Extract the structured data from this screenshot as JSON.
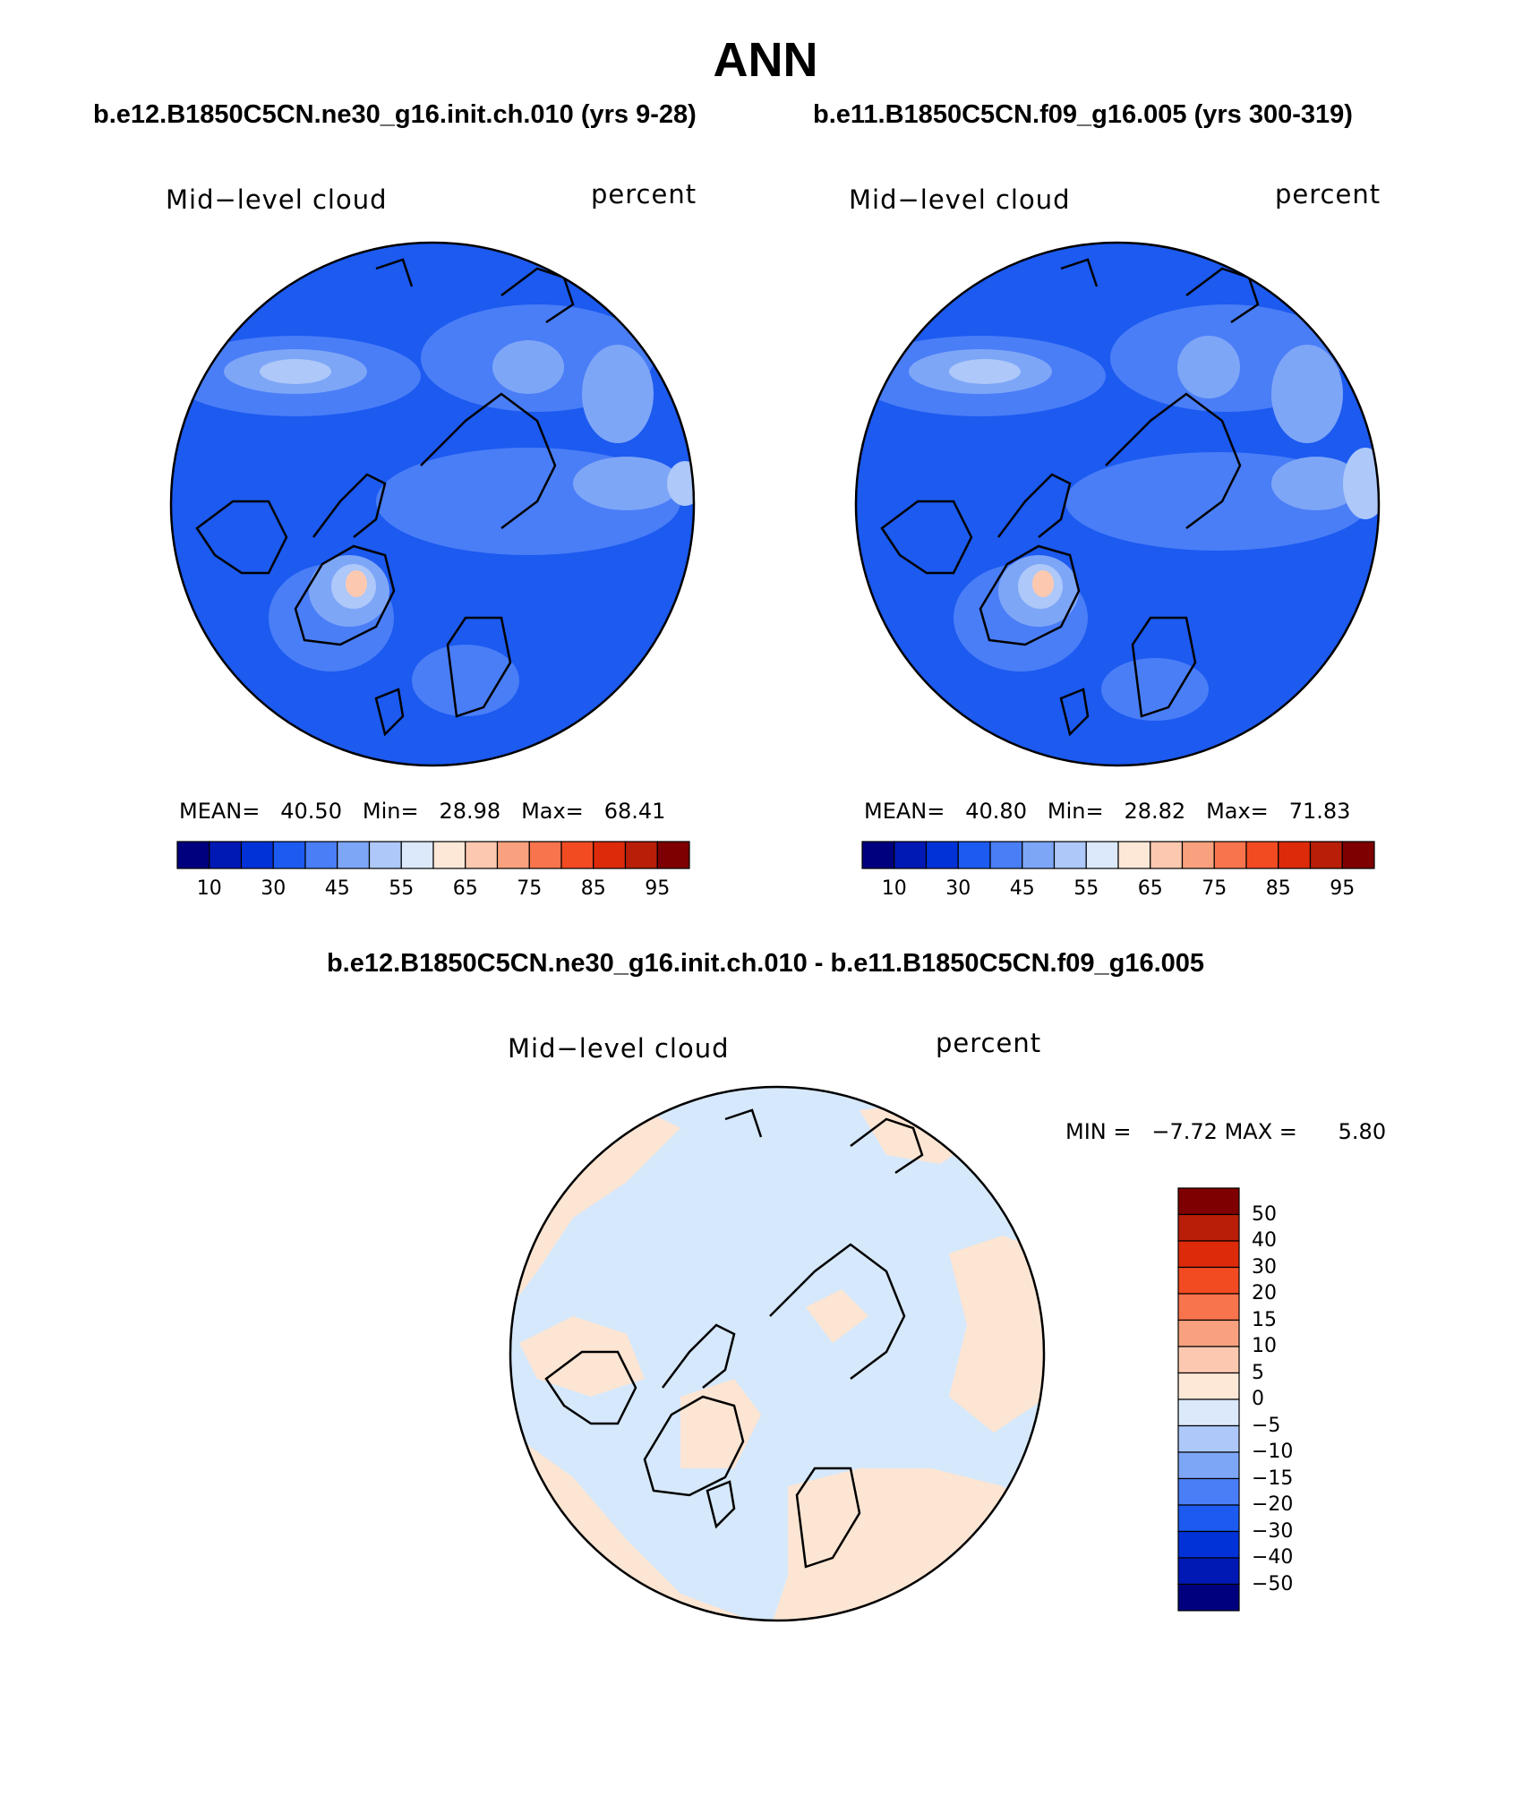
{
  "figure": {
    "season": "ANN",
    "top_left": {
      "title": "b.e12.B1850C5CN.ne30_g16.init.ch.010 (yrs 9-28)",
      "field": "Mid−level cloud",
      "units": "percent",
      "stats": {
        "mean_label": "MEAN=",
        "mean": "40.50",
        "min_label": "Min=",
        "min": "28.98",
        "max_label": "Max=",
        "max": "68.41"
      }
    },
    "top_right": {
      "title": "b.e11.B1850C5CN.f09_g16.005 (yrs 300-319)",
      "field": "Mid−level cloud",
      "units": "percent",
      "stats": {
        "mean_label": "MEAN=",
        "mean": "40.80",
        "min_label": "Min=",
        "min": "28.82",
        "max_label": "Max=",
        "max": "71.83"
      }
    },
    "difference": {
      "title": "b.e12.B1850C5CN.ne30_g16.init.ch.010 - b.e11.B1850C5CN.f09_g16.005",
      "field": "Mid−level cloud",
      "units": "percent",
      "stats": {
        "min_label": "MIN =",
        "min": "−7.72",
        "max_label": "MAX =",
        "max": "5.80"
      }
    },
    "abs_colorbar": {
      "colors": [
        "#00007f",
        "#0018b4",
        "#0032d8",
        "#1c5af0",
        "#4a7ef7",
        "#7ea6f7",
        "#adc8f9",
        "#dbe9fb",
        "#fde8d8",
        "#fcc9b0",
        "#f9a17e",
        "#f7744d",
        "#f24b22",
        "#dd2a0a",
        "#b81e08",
        "#7f0000"
      ],
      "tick_labels": [
        "10",
        "30",
        "45",
        "55",
        "65",
        "75",
        "85",
        "95"
      ]
    },
    "diff_colorbar": {
      "colors_top_to_bottom": [
        "#7f0000",
        "#b81e08",
        "#dd2a0a",
        "#f24b22",
        "#f7744d",
        "#f9a17e",
        "#fcc9b0",
        "#fde8d8",
        "#dbe9fb",
        "#adc8f9",
        "#7ea6f7",
        "#4a7ef7",
        "#1c5af0",
        "#0032d8",
        "#0018b4",
        "#00007f"
      ],
      "tick_labels": [
        "50",
        "40",
        "30",
        "20",
        "15",
        "10",
        "5",
        "0",
        "−5",
        "−10",
        "−15",
        "−20",
        "−30",
        "−40",
        "−50"
      ]
    },
    "colors": {
      "base_blue": "#1c5af0",
      "mid_blue": "#4a7ef7",
      "light_blue": "#7ea6f7",
      "pale_blue": "#adc8f9",
      "very_pale_blue": "#dbe9fb",
      "peach": "#fde8d8",
      "salmon": "#fcc9b0",
      "diff_blue": "#d6e8fb",
      "diff_peach": "#fde5d3"
    }
  }
}
